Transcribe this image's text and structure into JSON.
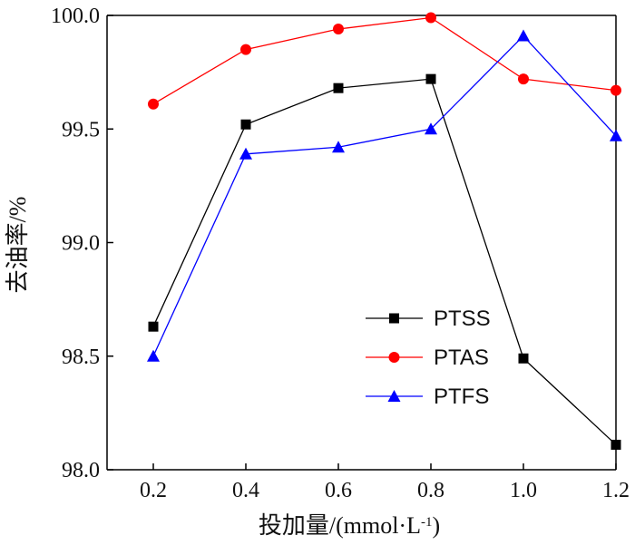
{
  "chart_data": {
    "type": "line",
    "x": [
      0.2,
      0.4,
      0.6,
      0.8,
      1.0,
      1.2
    ],
    "x_tick_labels": [
      "0.2",
      "0.4",
      "0.6",
      "0.8",
      "1.0",
      "1.2"
    ],
    "xlim": [
      0.1,
      1.2
    ],
    "ylim": [
      98.0,
      100.0
    ],
    "y_ticks": [
      98.0,
      98.5,
      99.0,
      99.5,
      100.0
    ],
    "y_tick_labels": [
      "98.0",
      "98.5",
      "99.0",
      "99.5",
      "100.0"
    ],
    "xlabel_main": "投加量/(mmol·L",
    "xlabel_sup": "-1",
    "xlabel_close": ")",
    "ylabel": "去油率/%",
    "grid": false,
    "legend_position": "lower-right-center",
    "series": [
      {
        "name": "PTSS",
        "color": "#000000",
        "marker": "square",
        "values": [
          98.63,
          99.52,
          99.68,
          99.72,
          98.49,
          98.11
        ]
      },
      {
        "name": "PTAS",
        "color": "#ff0000",
        "marker": "circle",
        "values": [
          99.61,
          99.85,
          99.94,
          99.99,
          99.72,
          99.67
        ]
      },
      {
        "name": "PTFS",
        "color": "#0000ff",
        "marker": "triangle",
        "values": [
          98.5,
          99.39,
          99.42,
          99.5,
          99.91,
          99.47
        ]
      }
    ]
  }
}
